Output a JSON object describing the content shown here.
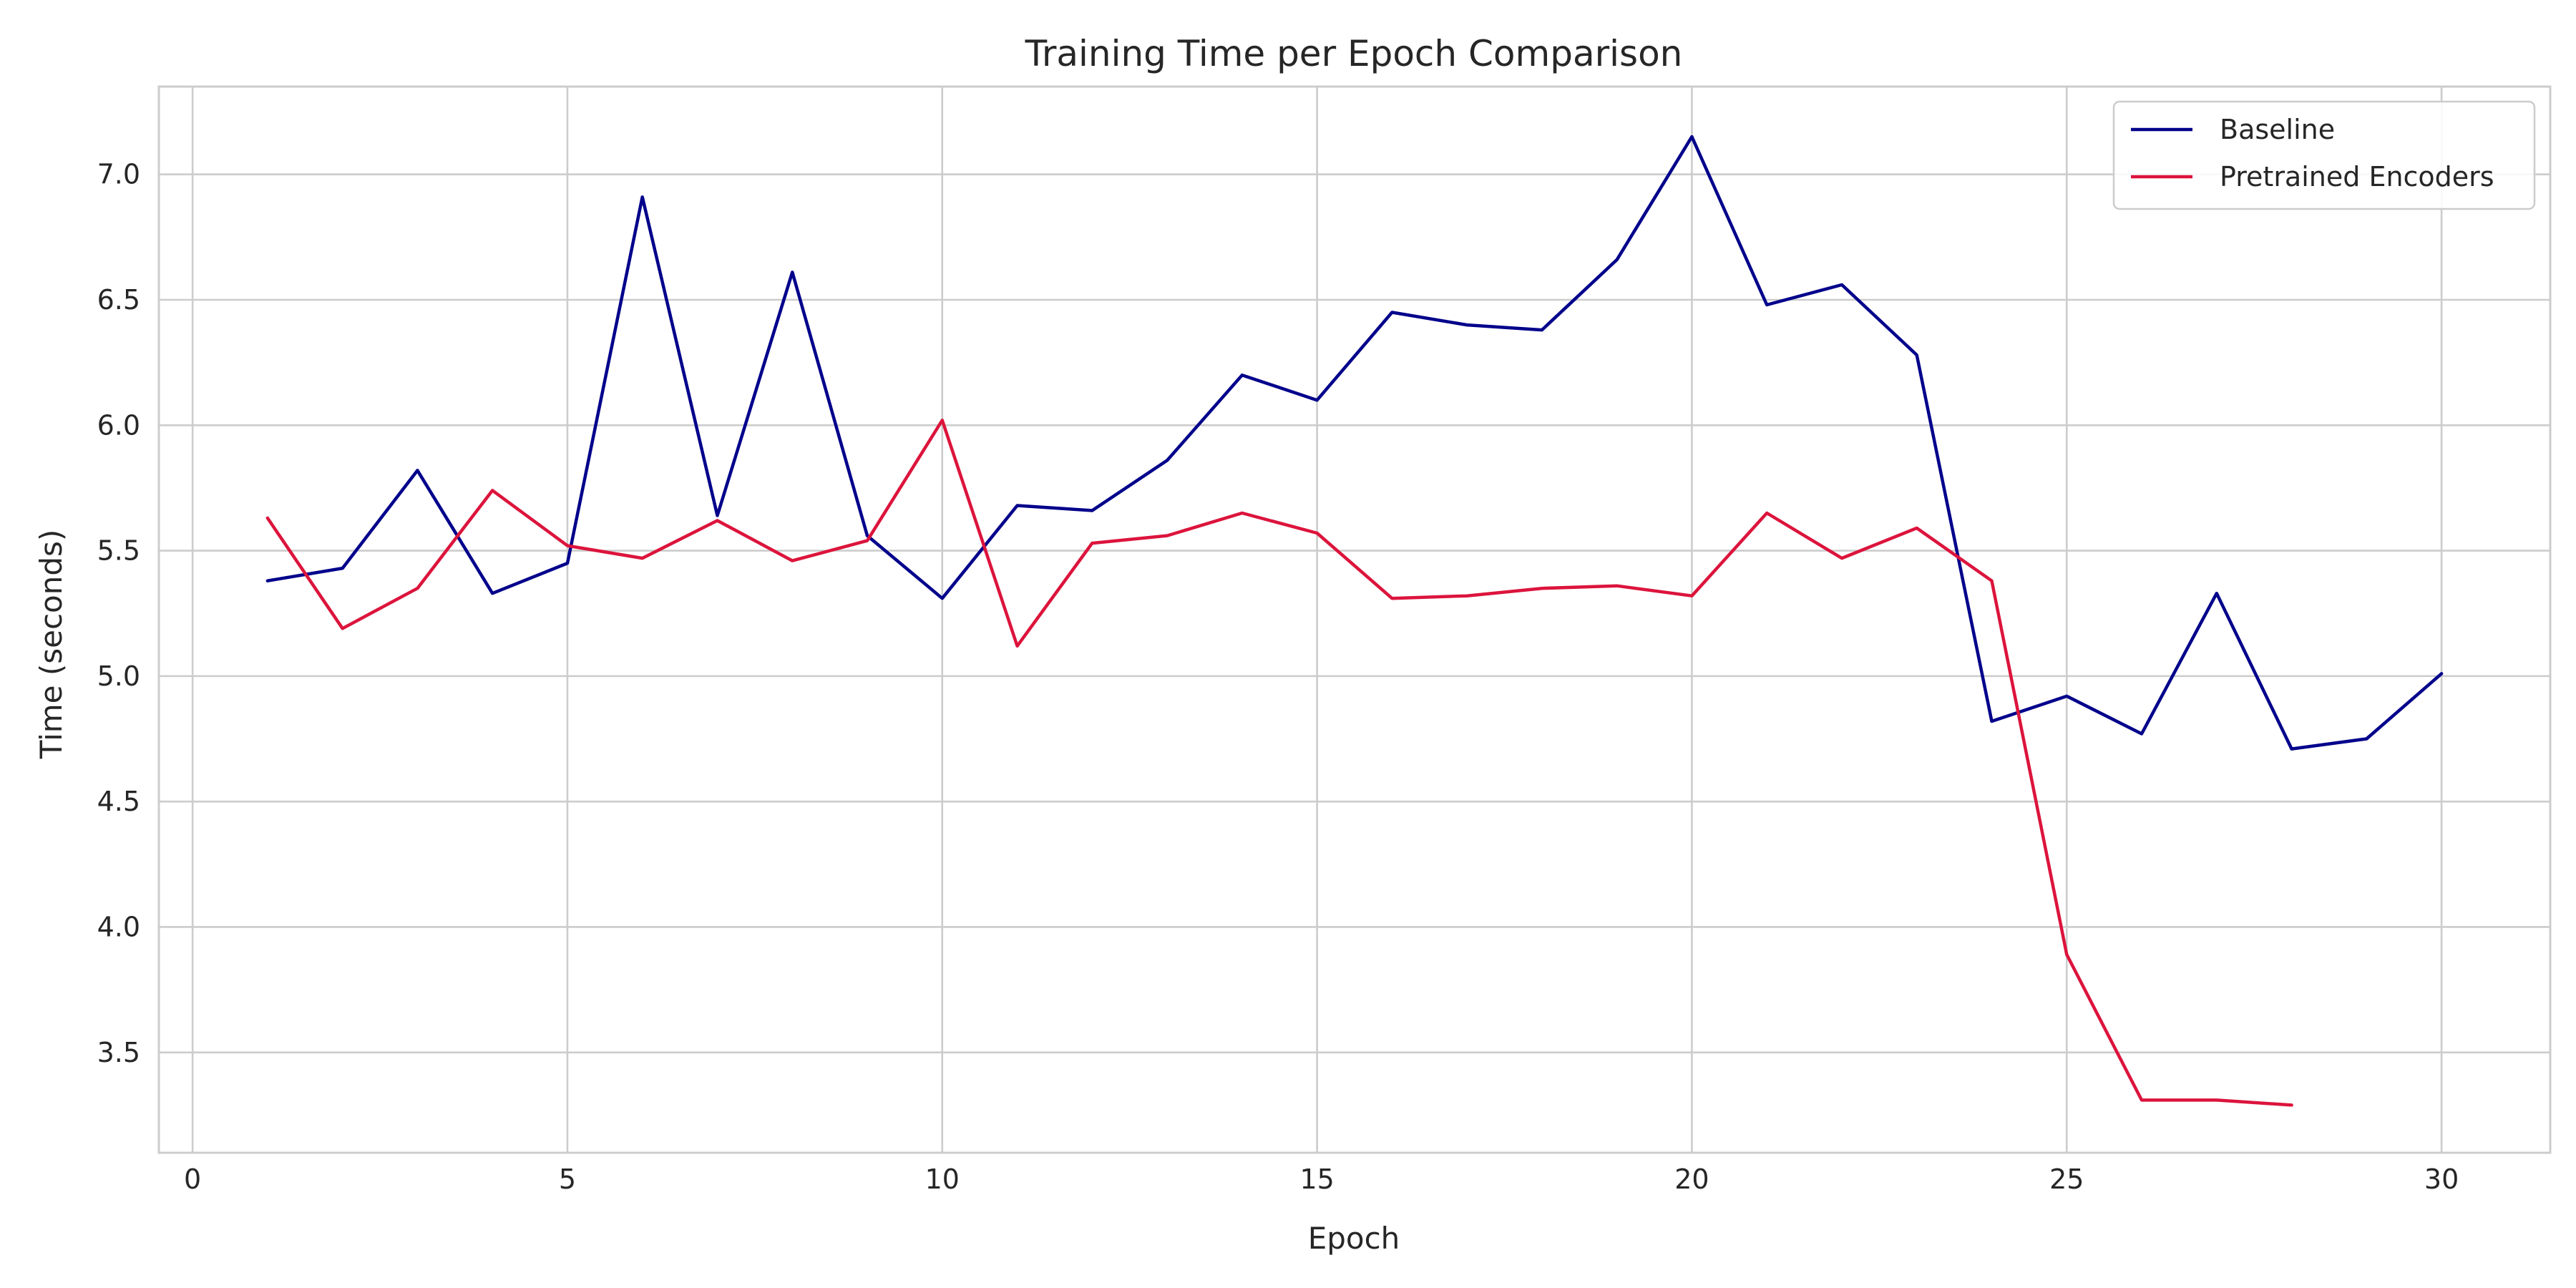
{
  "chart_data": {
    "type": "line",
    "title": "Training Time per Epoch Comparison",
    "xlabel": "Epoch",
    "ylabel": "Time (seconds)",
    "xlim": [
      -0.45,
      31.45
    ],
    "ylim": [
      3.1,
      7.35
    ],
    "xticks": [
      0,
      5,
      10,
      15,
      20,
      25,
      30
    ],
    "yticks": [
      3.5,
      4.0,
      4.5,
      5.0,
      5.5,
      6.0,
      6.5,
      7.0
    ],
    "ytick_labels": [
      "3.5",
      "4.0",
      "4.5",
      "5.0",
      "5.5",
      "6.0",
      "6.5",
      "7.0"
    ],
    "grid": true,
    "legend_position": "top-right",
    "series": [
      {
        "name": "Baseline",
        "color": "#00008b",
        "x": [
          1,
          2,
          3,
          4,
          5,
          6,
          7,
          8,
          9,
          10,
          11,
          12,
          13,
          14,
          15,
          16,
          17,
          18,
          19,
          20,
          21,
          22,
          23,
          24,
          25,
          26,
          27,
          28,
          29,
          30
        ],
        "y": [
          5.38,
          5.43,
          5.82,
          5.33,
          5.45,
          6.91,
          5.64,
          6.61,
          5.56,
          5.31,
          5.68,
          5.66,
          5.86,
          6.2,
          6.1,
          6.45,
          6.4,
          6.38,
          6.66,
          7.15,
          6.48,
          6.56,
          6.28,
          4.82,
          4.92,
          4.77,
          5.33,
          4.71,
          4.75,
          5.01
        ]
      },
      {
        "name": "Pretrained Encoders",
        "color": "#dc143c",
        "x": [
          1,
          2,
          3,
          4,
          5,
          6,
          7,
          8,
          9,
          10,
          11,
          12,
          13,
          14,
          15,
          16,
          17,
          18,
          19,
          20,
          21,
          22,
          23,
          24,
          25,
          26,
          27,
          28
        ],
        "y": [
          5.63,
          5.19,
          5.35,
          5.74,
          5.52,
          5.47,
          5.62,
          5.46,
          5.54,
          6.02,
          5.12,
          5.53,
          5.56,
          5.65,
          5.57,
          5.31,
          5.32,
          5.35,
          5.36,
          5.32,
          5.65,
          5.47,
          5.59,
          5.38,
          3.89,
          3.31,
          3.31,
          3.29
        ]
      }
    ]
  }
}
